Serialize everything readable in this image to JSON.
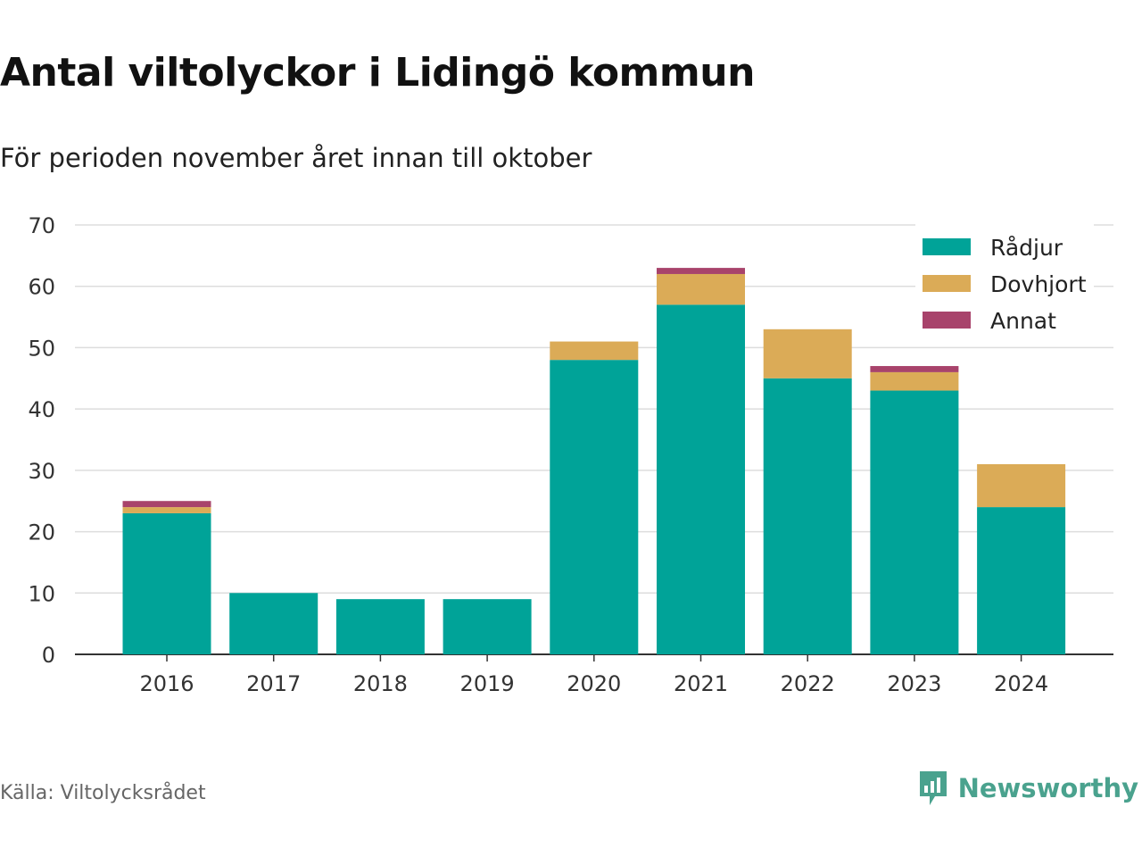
{
  "title": "Antal viltolyckor i Lidingö kommun",
  "subtitle": "För perioden november året innan till oktober",
  "source": "Källa: Viltolycksrådet",
  "brand": "Newsworthy",
  "colors": {
    "radjur": "#00a398",
    "dovhjort": "#dbab57",
    "annat": "#a8436b",
    "grid": "#dddddd",
    "axis": "#333333",
    "brand": "#4aa28e"
  },
  "chart_data": {
    "type": "bar",
    "stacked": true,
    "categories": [
      "2016",
      "2017",
      "2018",
      "2019",
      "2020",
      "2021",
      "2022",
      "2023",
      "2024"
    ],
    "series": [
      {
        "name": "Rådjur",
        "values": [
          23,
          10,
          9,
          9,
          48,
          57,
          45,
          43,
          24
        ]
      },
      {
        "name": "Dovhjort",
        "values": [
          1,
          0,
          0,
          0,
          3,
          5,
          8,
          3,
          7
        ]
      },
      {
        "name": "Annat",
        "values": [
          1,
          0,
          0,
          0,
          0,
          1,
          0,
          1,
          0
        ]
      }
    ],
    "ylim": [
      0,
      70
    ],
    "yticks": [
      0,
      10,
      20,
      30,
      40,
      50,
      60,
      70
    ],
    "grid": true,
    "legend": "top-right"
  }
}
